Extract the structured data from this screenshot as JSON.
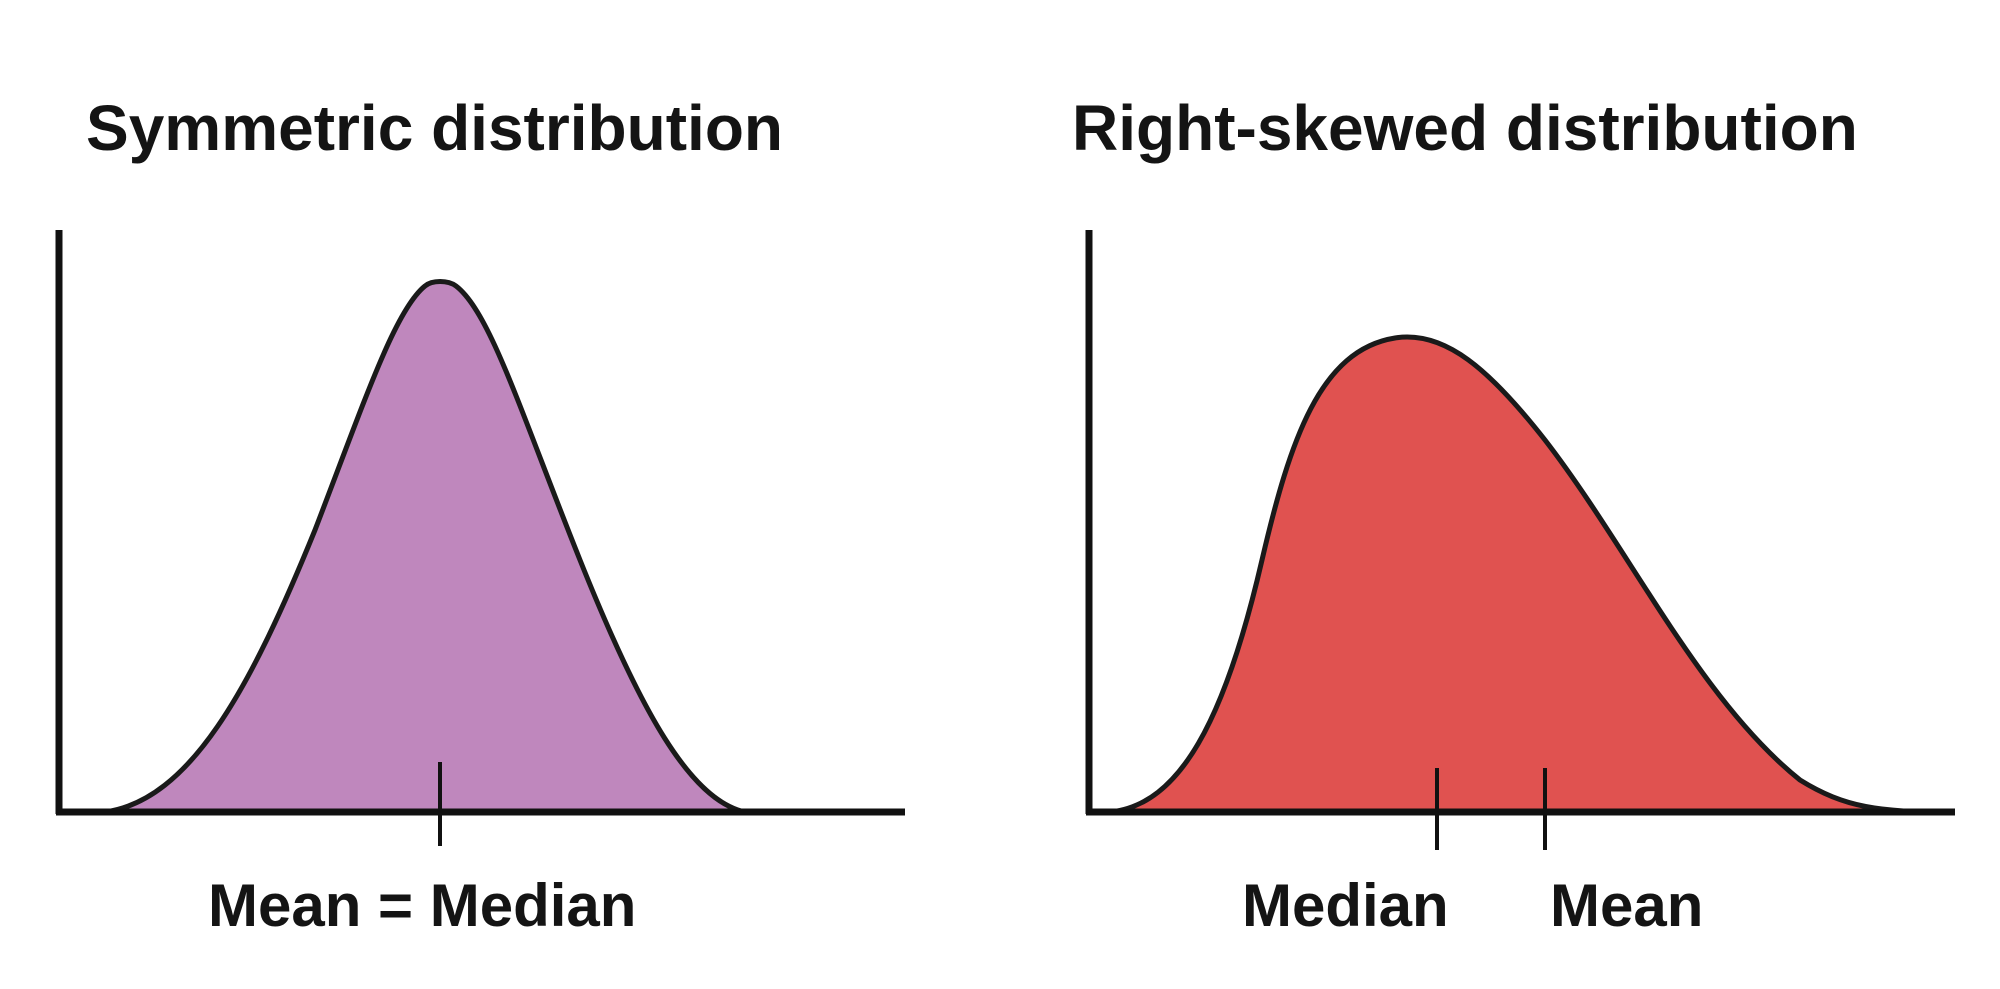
{
  "panels": [
    {
      "title": "Symmetric distribution",
      "curve_type": "symmetric",
      "fill_color": "#bf87bd",
      "markers": [
        {
          "label": "Mean = Median"
        }
      ]
    },
    {
      "title": "Right-skewed distribution",
      "curve_type": "right-skewed",
      "fill_color": "#e05250",
      "markers": [
        {
          "label": "Median"
        },
        {
          "label": "Mean"
        }
      ]
    }
  ],
  "colors": {
    "outline": "#1a1a1a",
    "axis": "#111111"
  }
}
